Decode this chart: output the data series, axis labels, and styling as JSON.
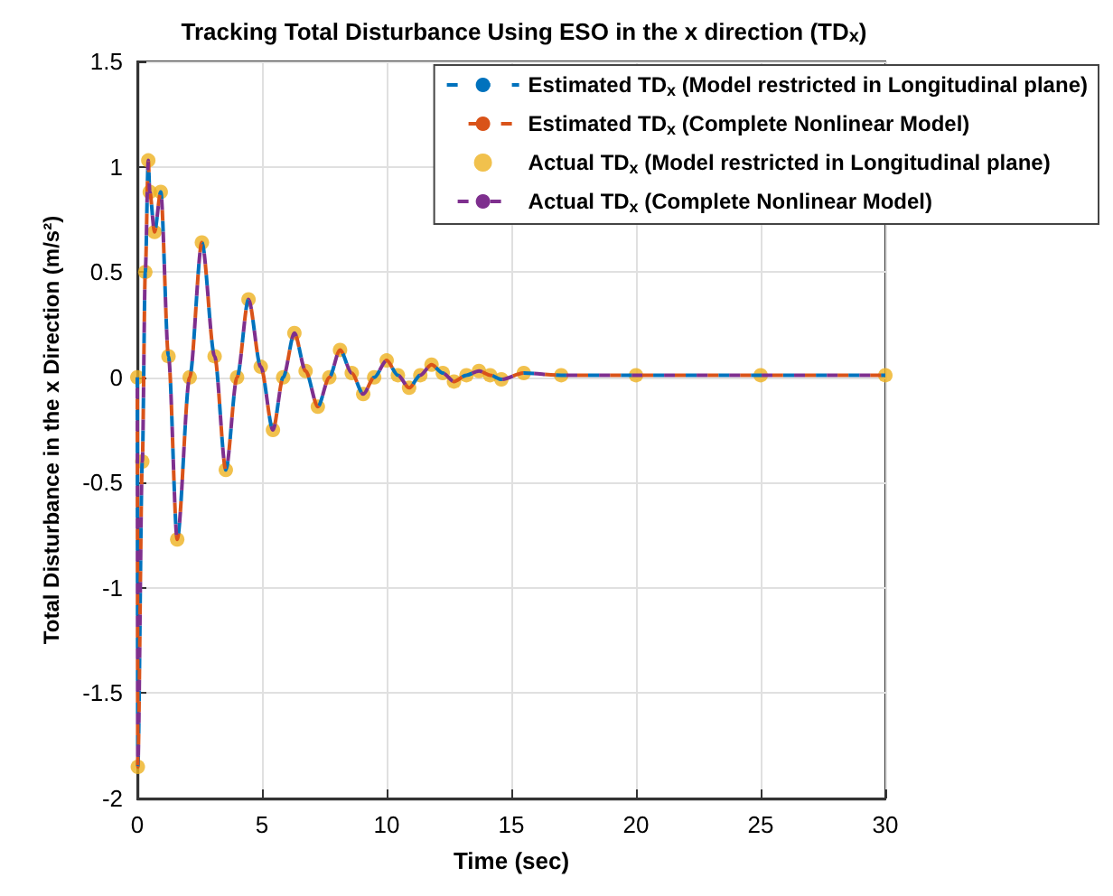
{
  "chart_data": {
    "type": "line",
    "title": "Tracking Total Disturbance Using ESO in the x direction (TD$_{x}$)",
    "xlabel": "Time (sec)",
    "ylabel": "Total Disturbance in the x Direction (m/s²)",
    "x": [
      0,
      0.02,
      0.2,
      0.32,
      0.44,
      0.5,
      0.69,
      0.94,
      1.25,
      1.6,
      2.1,
      2.59,
      3.1,
      3.55,
      4.0,
      4.46,
      4.95,
      5.44,
      5.85,
      6.3,
      6.75,
      7.24,
      7.7,
      8.13,
      8.6,
      9.06,
      9.5,
      10.0,
      10.45,
      10.9,
      11.35,
      11.8,
      12.25,
      12.7,
      13.2,
      13.7,
      14.15,
      14.6,
      15.5,
      17,
      20,
      25,
      30
    ],
    "series": [
      {
        "name": "Estimated TD$_{x}$ (Model restricted in Longitudinal plane)",
        "color": "#0072bd",
        "line_style": "dashed",
        "values": [
          0,
          -1.85,
          -0.4,
          0.5,
          1.03,
          0.88,
          0.69,
          0.88,
          0.1,
          -0.77,
          0,
          0.64,
          0.1,
          -0.44,
          0,
          0.37,
          0.05,
          -0.25,
          0,
          0.21,
          0.03,
          -0.14,
          0,
          0.13,
          0.02,
          -0.08,
          0,
          0.08,
          0.01,
          -0.05,
          0.01,
          0.06,
          0.02,
          -0.02,
          0.01,
          0.03,
          0.01,
          -0.01,
          0.02,
          0.01,
          0.01,
          0.01,
          0.01
        ]
      },
      {
        "name": "Estimated TD$_{x}$ (Complete Nonlinear Model)",
        "color": "#d95319",
        "line_style": "dashed",
        "values": [
          0,
          -1.85,
          -0.4,
          0.5,
          1.03,
          0.88,
          0.69,
          0.88,
          0.1,
          -0.77,
          0,
          0.64,
          0.1,
          -0.44,
          0,
          0.37,
          0.05,
          -0.25,
          0,
          0.21,
          0.03,
          -0.14,
          0,
          0.13,
          0.02,
          -0.08,
          0,
          0.08,
          0.01,
          -0.05,
          0.01,
          0.06,
          0.02,
          -0.02,
          0.01,
          0.03,
          0.01,
          -0.01,
          0.02,
          0.01,
          0.01,
          0.01,
          0.01
        ]
      },
      {
        "name": "Actual TD$_{x}$ (Model restricted in Longitudinal plane)",
        "color": "#edb120",
        "type": "scatter",
        "marker": "circle",
        "values": [
          0,
          -1.85,
          -0.4,
          0.5,
          1.03,
          0.88,
          0.69,
          0.88,
          0.1,
          -0.77,
          0,
          0.64,
          0.1,
          -0.44,
          0,
          0.37,
          0.05,
          -0.25,
          0,
          0.21,
          0.03,
          -0.14,
          0,
          0.13,
          0.02,
          -0.08,
          0,
          0.08,
          0.01,
          -0.05,
          0.01,
          0.06,
          0.02,
          -0.02,
          0.01,
          0.03,
          0.01,
          -0.01,
          0.02,
          0.01,
          0.01,
          0.01,
          0.01
        ]
      },
      {
        "name": "Actual TD$_{x}$ (Complete Nonlinear Model)",
        "color": "#7e2f8e",
        "line_style": "dashed",
        "values": [
          0,
          -1.85,
          -0.4,
          0.5,
          1.03,
          0.88,
          0.69,
          0.88,
          0.1,
          -0.77,
          0,
          0.64,
          0.1,
          -0.44,
          0,
          0.37,
          0.05,
          -0.25,
          0,
          0.21,
          0.03,
          -0.14,
          0,
          0.13,
          0.02,
          -0.08,
          0,
          0.08,
          0.01,
          -0.05,
          0.01,
          0.06,
          0.02,
          -0.02,
          0.01,
          0.03,
          0.01,
          -0.01,
          0.02,
          0.01,
          0.01,
          0.01,
          0.01
        ]
      }
    ],
    "xlim": [
      0,
      30
    ],
    "xticks": [
      0,
      5,
      10,
      15,
      20,
      25,
      30
    ],
    "ylim": [
      -2,
      1.5
    ],
    "yticks": [
      -2,
      -1.5,
      -1,
      -0.5,
      0,
      0.5,
      1,
      1.5
    ],
    "grid": true,
    "legend": "top right"
  }
}
